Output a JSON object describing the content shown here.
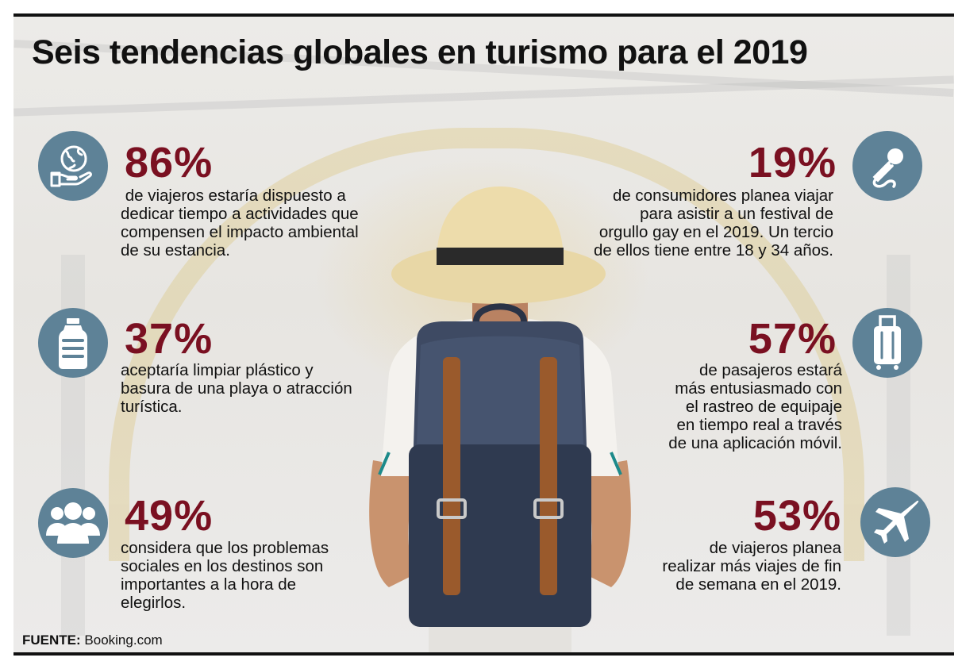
{
  "title": "Seis tendencias globales en turismo para el 2019",
  "icon_color": "#5e8297",
  "accent_color": "#7a1021",
  "stats": [
    {
      "side": "left",
      "icon": "globe-hand-icon",
      "percent": "86%",
      "lines": [
        " de viajeros estaría dispuesto a",
        "dedicar tiempo a actividades que",
        "compensen el impacto ambiental",
        "de su estancia."
      ]
    },
    {
      "side": "left",
      "icon": "water-bottle-icon",
      "percent": "37%",
      "lines": [
        "aceptaría limpiar plástico y",
        "basura de una playa o atracción",
        "turística."
      ]
    },
    {
      "side": "left",
      "icon": "people-group-icon",
      "percent": "49%",
      "lines": [
        "considera que los problemas",
        "sociales en los destinos son",
        "importantes a la hora de",
        "elegirlos."
      ]
    },
    {
      "side": "right",
      "icon": "microphone-icon",
      "percent": "19%",
      "lines": [
        "de consumidores planea viajar",
        "para asistir a un festival de",
        "orgullo gay en el 2019. Un tercio",
        "de ellos tiene entre 18 y 34 años."
      ]
    },
    {
      "side": "right",
      "icon": "suitcase-icon",
      "percent": "57%",
      "lines": [
        "de pasajeros estará",
        "más entusiasmado con",
        "el rastreo de equipaje",
        "en tiempo real a través",
        "de una aplicación móvil."
      ]
    },
    {
      "side": "right",
      "icon": "airplane-icon",
      "percent": "53%",
      "lines": [
        "de viajeros planea",
        "realizar más viajes de fin",
        "de semana en el 2019."
      ]
    }
  ],
  "source": {
    "label": "FUENTE:",
    "value": "Booking.com"
  }
}
